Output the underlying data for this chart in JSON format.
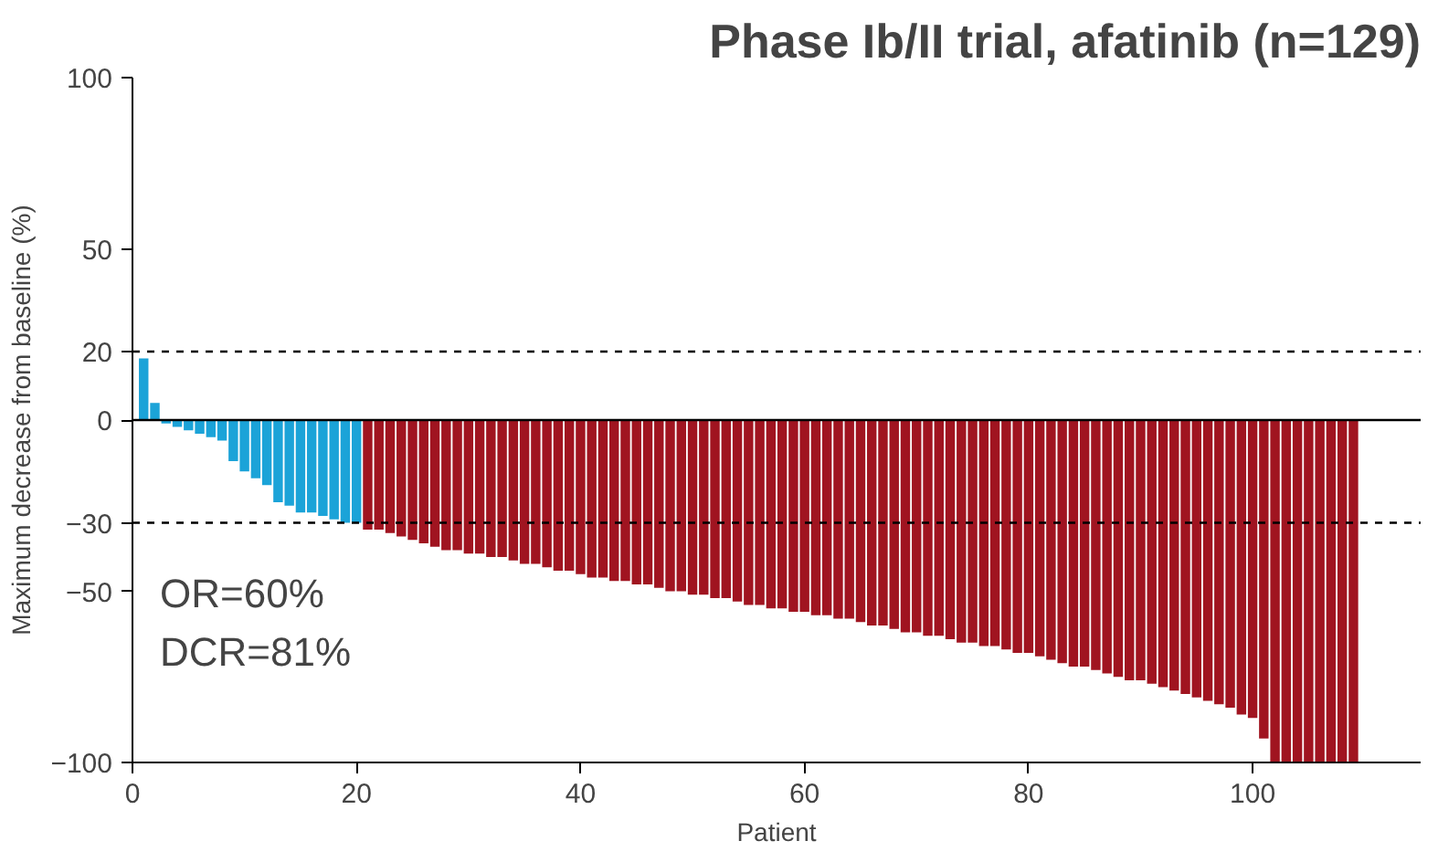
{
  "chart_data": {
    "type": "bar",
    "title": "Phase Ib/II trial, afatinib (n=129)",
    "xlabel": "Patient",
    "ylabel": "Maximum decrease from baseline (%)",
    "series": [
      {
        "color": "#1ba3d8",
        "x": [
          1,
          2,
          3,
          4,
          5,
          6,
          7,
          8,
          9,
          10,
          11,
          12,
          13,
          14,
          15,
          16,
          17,
          18,
          19,
          20
        ],
        "values": [
          18,
          5,
          -1,
          -2,
          -3,
          -4,
          -5,
          -6,
          -12,
          -15,
          -17,
          -19,
          -24,
          -25,
          -27,
          -27,
          -28,
          -29,
          -30,
          -30
        ]
      },
      {
        "color": "#a01420",
        "x": [
          21,
          22,
          23,
          24,
          25,
          26,
          27,
          28,
          29,
          30,
          31,
          32,
          33,
          34,
          35,
          36,
          37,
          38,
          39,
          40,
          41,
          42,
          43,
          44,
          45,
          46,
          47,
          48,
          49,
          50,
          51,
          52,
          53,
          54,
          55,
          56,
          57,
          58,
          59,
          60,
          61,
          62,
          63,
          64,
          65,
          66,
          67,
          68,
          69,
          70,
          71,
          72,
          73,
          74,
          75,
          76,
          77,
          78,
          79,
          80,
          81,
          82,
          83,
          84,
          85,
          86,
          87,
          88,
          89,
          90,
          91,
          92,
          93,
          94,
          95,
          96,
          97,
          98,
          99,
          100,
          101,
          102,
          103,
          104,
          105,
          106,
          107,
          108,
          109
        ],
        "values": [
          -32,
          -32,
          -33,
          -34,
          -35,
          -36,
          -37,
          -38,
          -38,
          -39,
          -39,
          -40,
          -40,
          -41,
          -42,
          -42,
          -43,
          -44,
          -44,
          -45,
          -46,
          -46,
          -47,
          -47,
          -48,
          -48,
          -49,
          -50,
          -50,
          -51,
          -51,
          -52,
          -52,
          -53,
          -54,
          -54,
          -55,
          -55,
          -56,
          -56,
          -57,
          -57,
          -58,
          -58,
          -59,
          -60,
          -60,
          -61,
          -62,
          -62,
          -63,
          -63,
          -64,
          -65,
          -65,
          -66,
          -66,
          -67,
          -68,
          -68,
          -69,
          -70,
          -71,
          -72,
          -72,
          -73,
          -74,
          -75,
          -76,
          -76,
          -77,
          -78,
          -79,
          -80,
          -81,
          -82,
          -83,
          -84,
          -86,
          -87,
          -93,
          -100,
          -100,
          -100,
          -100,
          -100,
          -100,
          -100,
          -100
        ]
      }
    ],
    "xlim": [
      0,
      115
    ],
    "xticks": [
      0,
      20,
      40,
      60,
      80,
      100
    ],
    "ylim": [
      -100,
      100
    ],
    "yticks": [
      -100,
      -50,
      -30,
      0,
      20,
      50,
      100
    ],
    "ref_lines": [
      {
        "axis": "y",
        "value": 20,
        "line_style": "dashed"
      },
      {
        "axis": "y",
        "value": -30,
        "line_style": "dashed"
      },
      {
        "axis": "y",
        "value": 0,
        "line_style": "solid"
      }
    ],
    "annotations": [
      "OR=60%",
      "DCR=81%"
    ],
    "grid": false
  }
}
